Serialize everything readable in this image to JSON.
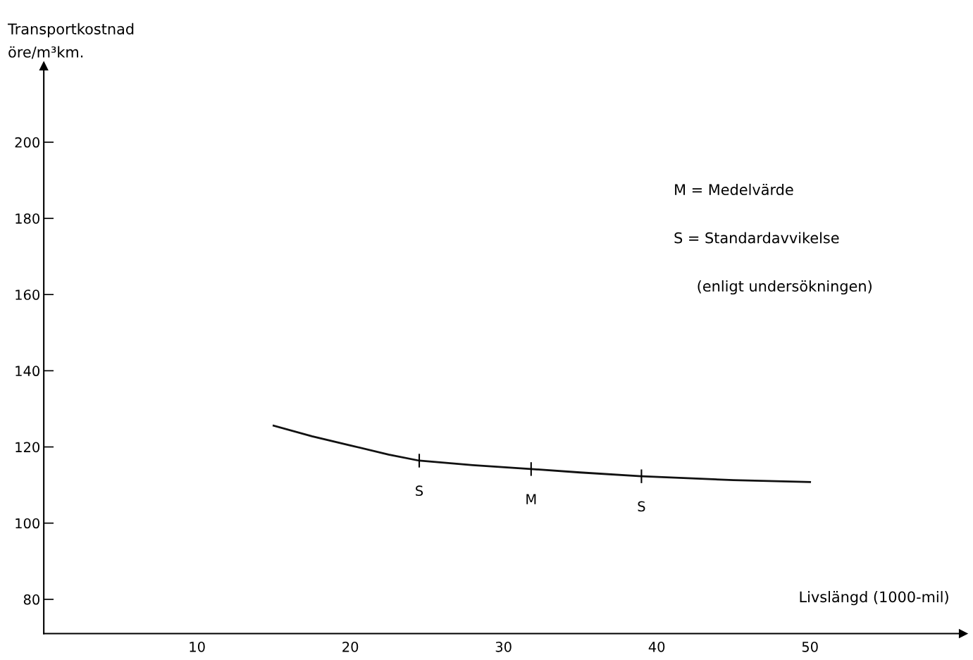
{
  "chart_data": {
    "type": "line",
    "ylabel": "Transportkostnad\nöre/m³km.",
    "xlabel": "Livslängd (1000-mil)",
    "x": [
      15,
      17.5,
      20,
      22.5,
      24.5,
      28,
      31.8,
      35,
      39,
      45,
      50
    ],
    "series": [
      {
        "color": "#111111",
        "values": [
          125.6,
          122.8,
          120.4,
          118.0,
          116.4,
          115.2,
          114.2,
          113.3,
          112.3,
          111.3,
          110.8
        ]
      }
    ],
    "xlim": [
      0,
      60
    ],
    "ylim": [
      71,
      220
    ],
    "xticks": [
      10,
      20,
      30,
      40,
      50
    ],
    "yticks": [
      80,
      100,
      120,
      140,
      160,
      180,
      200
    ],
    "grid": false,
    "marker": "none",
    "line_style": "solid",
    "annotations": [
      {
        "text": "S",
        "x": 24.5,
        "y": 116.4
      },
      {
        "text": "M",
        "x": 31.8,
        "y": 114.2
      },
      {
        "text": "S",
        "x": 39,
        "y": 112.3
      },
      "M = Medelvärde",
      "S = Standardavvikelse",
      "(enligt undersökningen)"
    ]
  }
}
